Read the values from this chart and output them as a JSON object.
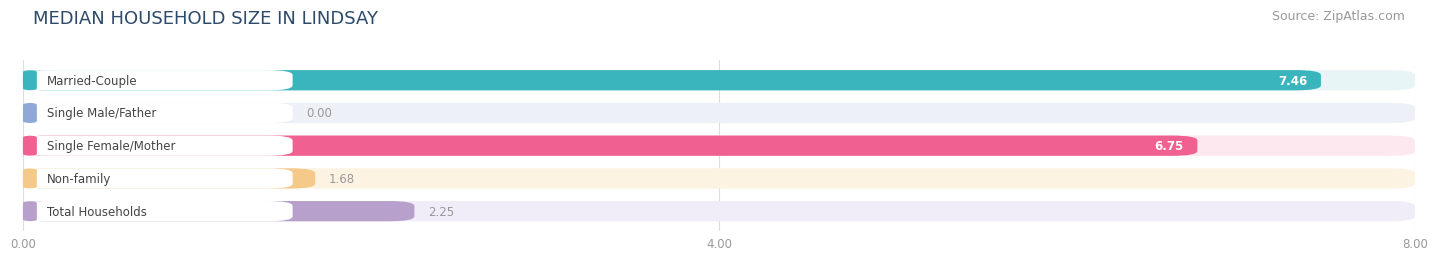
{
  "title": "MEDIAN HOUSEHOLD SIZE IN LINDSAY",
  "source": "Source: ZipAtlas.com",
  "categories": [
    "Married-Couple",
    "Single Male/Father",
    "Single Female/Mother",
    "Non-family",
    "Total Households"
  ],
  "values": [
    7.46,
    0.0,
    6.75,
    1.68,
    2.25
  ],
  "bar_colors": [
    "#3ab5be",
    "#8fa8d8",
    "#f06090",
    "#f5c98a",
    "#b8a0cc"
  ],
  "bar_bg_colors": [
    "#e8f5f6",
    "#eef0f8",
    "#fde8ef",
    "#fdf3e3",
    "#f0ecf8"
  ],
  "label_box_colors": [
    "#3ab5be",
    "#8fa8d8",
    "#f06090",
    "#f5c98a",
    "#b8a0cc"
  ],
  "xlim": [
    0,
    8.0
  ],
  "xticks": [
    0.0,
    4.0,
    8.0
  ],
  "xtick_labels": [
    "0.00",
    "4.00",
    "8.00"
  ],
  "value_label_color_inside": "#ffffff",
  "value_label_color_outside": "#999999",
  "title_fontsize": 13,
  "source_fontsize": 9,
  "label_fontsize": 8.5,
  "value_fontsize": 8.5,
  "bar_height": 0.62,
  "background_color": "#ffffff",
  "title_color": "#2d4a6b",
  "grid_color": "#dddddd"
}
